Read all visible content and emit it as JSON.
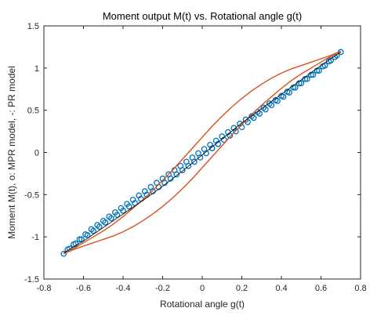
{
  "chart_data": {
    "type": "scatter",
    "title": "Moment output M(t)  vs.  Rotational angle g(t)",
    "xlabel": "Rotational angle g(t)",
    "ylabel": "Moment  M(t),   o: MPR model,  -: PR model",
    "xlim": [
      -0.8,
      0.8
    ],
    "ylim": [
      -1.5,
      1.5
    ],
    "xticks": [
      -0.8,
      -0.6,
      -0.4,
      -0.2,
      0,
      0.2,
      0.4,
      0.6,
      0.8
    ],
    "yticks": [
      -1.5,
      -1,
      -0.5,
      0,
      0.5,
      1,
      1.5
    ],
    "xtick_labels": [
      "-0.8",
      "-0.6",
      "-0.4",
      "-0.2",
      "0",
      "0.2",
      "0.4",
      "0.6",
      "0.8"
    ],
    "ytick_labels": [
      "-1.5",
      "-1",
      "-0.5",
      "0",
      "0.5",
      "1",
      "1.5"
    ],
    "grid": false,
    "series": [
      {
        "type": "scatter",
        "marker": "circle",
        "color": "#0072BD",
        "x": [
          -0.7,
          -0.67,
          -0.64,
          -0.61,
          -0.58,
          -0.55,
          -0.52,
          -0.49,
          -0.46,
          -0.43,
          -0.4,
          -0.37,
          -0.34,
          -0.31,
          -0.28,
          -0.25,
          -0.22,
          -0.19,
          -0.16,
          -0.13,
          -0.1,
          -0.07,
          -0.04,
          -0.01,
          0.02,
          0.05,
          0.08,
          0.11,
          0.14,
          0.17,
          0.2,
          0.23,
          0.26,
          0.29,
          0.32,
          0.35,
          0.38,
          0.41,
          0.44,
          0.47,
          0.5,
          0.53,
          0.56,
          0.59,
          0.62,
          0.65,
          0.68,
          0.7,
          0.67,
          0.64,
          0.61,
          0.58,
          0.55,
          0.52,
          0.49,
          0.46,
          0.43,
          0.4,
          0.37,
          0.34,
          0.31,
          0.28,
          0.25,
          0.22,
          0.19,
          0.16,
          0.13,
          0.1,
          0.07,
          0.04,
          0.01,
          -0.02,
          -0.05,
          -0.08,
          -0.11,
          -0.14,
          -0.17,
          -0.2,
          -0.23,
          -0.26,
          -0.29,
          -0.32,
          -0.35,
          -0.38,
          -0.41,
          -0.44,
          -0.47,
          -0.5,
          -0.53,
          -0.56,
          -0.59,
          -0.62,
          -0.65,
          -0.68
        ],
        "y": [
          -1.2,
          -1.14,
          -1.08,
          -1.03,
          -0.98,
          -0.93,
          -0.88,
          -0.83,
          -0.78,
          -0.74,
          -0.69,
          -0.64,
          -0.6,
          -0.55,
          -0.5,
          -0.46,
          -0.41,
          -0.36,
          -0.31,
          -0.26,
          -0.21,
          -0.16,
          -0.11,
          -0.06,
          -0.01,
          0.05,
          0.1,
          0.15,
          0.2,
          0.25,
          0.3,
          0.36,
          0.41,
          0.46,
          0.51,
          0.56,
          0.61,
          0.66,
          0.71,
          0.77,
          0.82,
          0.87,
          0.92,
          0.97,
          1.03,
          1.09,
          1.15,
          1.19,
          1.13,
          1.08,
          1.02,
          0.97,
          0.92,
          0.87,
          0.82,
          0.77,
          0.72,
          0.67,
          0.62,
          0.58,
          0.53,
          0.48,
          0.43,
          0.39,
          0.34,
          0.29,
          0.24,
          0.19,
          0.14,
          0.09,
          0.04,
          -0.01,
          -0.06,
          -0.11,
          -0.16,
          -0.21,
          -0.26,
          -0.31,
          -0.36,
          -0.41,
          -0.46,
          -0.51,
          -0.56,
          -0.61,
          -0.66,
          -0.71,
          -0.76,
          -0.81,
          -0.86,
          -0.91,
          -0.97,
          -1.03,
          -1.09,
          -1.15
        ]
      },
      {
        "type": "line",
        "color": "#D95319",
        "x": [
          -0.7,
          -0.65,
          -0.6,
          -0.55,
          -0.5,
          -0.45,
          -0.4,
          -0.35,
          -0.3,
          -0.25,
          -0.2,
          -0.15,
          -0.1,
          -0.05,
          0,
          0.05,
          0.1,
          0.15,
          0.2,
          0.25,
          0.3,
          0.35,
          0.4,
          0.45,
          0.5,
          0.55,
          0.6,
          0.65,
          0.7,
          0.65,
          0.6,
          0.55,
          0.5,
          0.45,
          0.4,
          0.35,
          0.3,
          0.25,
          0.2,
          0.15,
          0.1,
          0.05,
          0,
          -0.05,
          -0.1,
          -0.15,
          -0.2,
          -0.25,
          -0.3,
          -0.35,
          -0.4,
          -0.45,
          -0.5,
          -0.55,
          -0.6,
          -0.65,
          -0.7
        ],
        "y": [
          -1.2,
          -1.15,
          -1.11,
          -1.07,
          -1.03,
          -0.99,
          -0.94,
          -0.88,
          -0.81,
          -0.73,
          -0.64,
          -0.54,
          -0.43,
          -0.31,
          -0.18,
          -0.05,
          0.08,
          0.21,
          0.33,
          0.45,
          0.56,
          0.66,
          0.76,
          0.85,
          0.93,
          1.0,
          1.07,
          1.14,
          1.2,
          1.15,
          1.11,
          1.07,
          1.03,
          0.99,
          0.94,
          0.88,
          0.81,
          0.73,
          0.64,
          0.54,
          0.43,
          0.31,
          0.18,
          0.05,
          -0.08,
          -0.21,
          -0.33,
          -0.45,
          -0.56,
          -0.66,
          -0.76,
          -0.85,
          -0.93,
          -1.0,
          -1.07,
          -1.14,
          -1.2
        ]
      },
      {
        "type": "line",
        "color": "#000000",
        "x": [
          -0.7,
          -0.6,
          -0.5,
          -0.4,
          -0.3,
          -0.2,
          -0.1,
          0,
          0.1,
          0.2,
          0.3,
          0.4,
          0.5,
          0.6,
          0.7
        ],
        "y": [
          -1.19,
          -1.05,
          -0.89,
          -0.73,
          -0.57,
          -0.4,
          -0.22,
          -0.03,
          0.16,
          0.35,
          0.52,
          0.69,
          0.86,
          1.03,
          1.19
        ]
      }
    ]
  }
}
